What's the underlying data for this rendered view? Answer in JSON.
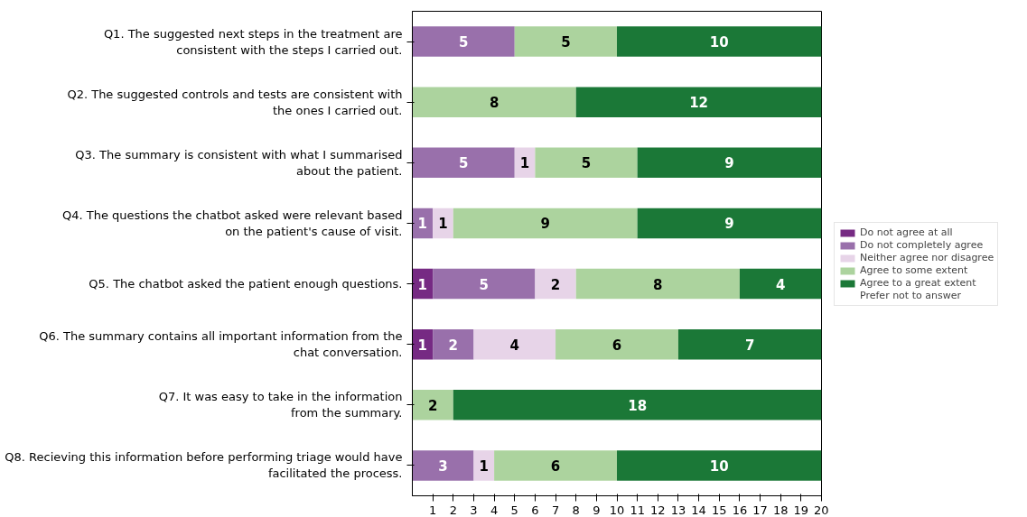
{
  "chart_data": {
    "type": "bar",
    "orientation": "horizontal",
    "stacked": true,
    "data_labels": true,
    "legend": "right",
    "grid": false,
    "categories": [
      "Q1. The suggested next steps in the treatment are\nconsistent with the steps I carried out.",
      "Q2. The suggested controls and tests are consistent with\nthe ones I carried out.",
      "Q3. The summary is consistent with what I summarised\nabout the patient.",
      "Q4. The questions the chatbot asked were relevant based\non the patient's cause of visit.",
      "Q5. The chatbot asked the patient enough questions.",
      "Q6. The summary contains all important information from the\nchat conversation.",
      "Q7. It was easy to take in the information\nfrom the summary.",
      "Q8. Recieving this information before performing triage would have\nfacilitated the process."
    ],
    "xlim": [
      0,
      20
    ],
    "xticks": [
      1,
      2,
      3,
      4,
      5,
      6,
      7,
      8,
      9,
      10,
      11,
      12,
      13,
      14,
      15,
      16,
      17,
      18,
      19,
      20
    ],
    "series": [
      {
        "name": "Do not agree at all",
        "color": "#762a83",
        "values": [
          null,
          null,
          null,
          null,
          1,
          1,
          null,
          null
        ]
      },
      {
        "name": "Do not completely agree",
        "color": "#9970ab",
        "values": [
          5,
          null,
          5,
          1,
          5,
          2,
          null,
          3
        ]
      },
      {
        "name": "Neither agree nor disagree",
        "color": "#e7d4e8",
        "values": [
          null,
          null,
          1,
          1,
          2,
          4,
          null,
          1
        ]
      },
      {
        "name": "Agree to some extent",
        "color": "#acd39e",
        "values": [
          5,
          8,
          5,
          9,
          8,
          6,
          2,
          6
        ]
      },
      {
        "name": "Agree to a great extent",
        "color": "#1b7837",
        "values": [
          10,
          12,
          9,
          9,
          4,
          7,
          18,
          10
        ]
      },
      {
        "name": "Prefer not to answer",
        "values": [
          null,
          null,
          null,
          null,
          null,
          null,
          null,
          null
        ]
      }
    ]
  }
}
